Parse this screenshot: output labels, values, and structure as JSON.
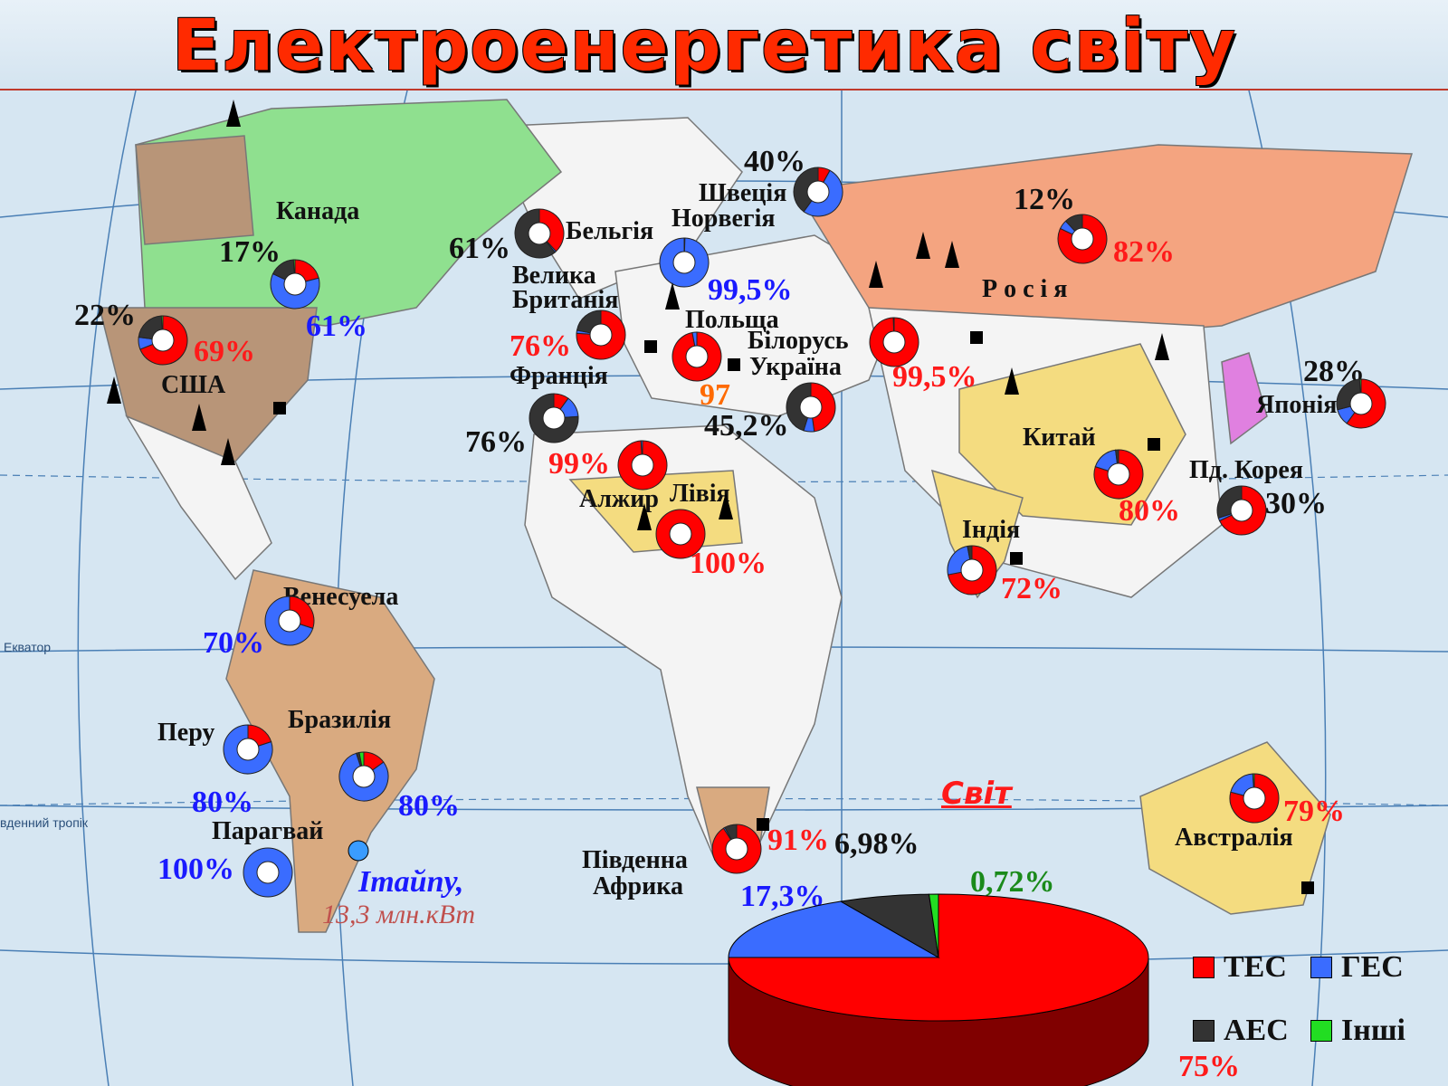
{
  "title": "Електроенергетика світу",
  "world_label": "Світ",
  "itaipu": {
    "name": "Ітайпу,",
    "capacity": "13,3 млн.кВт"
  },
  "colors": {
    "tes": "#ff0000",
    "ges": "#3a6cff",
    "aes": "#333333",
    "other": "#22dd22"
  },
  "legend": [
    {
      "label": "ТЕС",
      "color": "#ff0000"
    },
    {
      "label": "ГЕС",
      "color": "#3a6cff"
    },
    {
      "label": "АЕС",
      "color": "#333333"
    },
    {
      "label": "Інші",
      "color": "#22dd22"
    }
  ],
  "map_labels": {
    "equator": "Екватор",
    "tropic": "вденний тропік",
    "canada": "Канада",
    "usa": "США",
    "venezuela": "Венесуела",
    "peru": "Перу",
    "brazil": "Бразилія",
    "paraguay": "Парагвай",
    "belgium": "Бельгія",
    "norway": "Норвегія",
    "sweden": "Швеція",
    "uk1": "Велика",
    "uk2": "Британія",
    "poland": "Польща",
    "belarus": "Білорусь",
    "ukraine": "Україна",
    "france": "Франція",
    "algeria": "Алжир",
    "libya": "Лівія",
    "south_africa1": "Південна",
    "south_africa2": "Африка",
    "russia": "Р о с і я",
    "china": "Китай",
    "india": "Індія",
    "japan": "Японія",
    "korea": "Пд. Корея",
    "australia": "Австралія"
  },
  "percent_labels": {
    "canada_aes": "17%",
    "canada_ges": "61%",
    "usa_aes": "22%",
    "usa_tes": "69%",
    "venezuela_ges": "70%",
    "peru_ges": "80%",
    "brazil_ges": "80%",
    "paraguay_ges": "100%",
    "belgium_aes": "61%",
    "norway_ges": "99,5%",
    "sweden_aes": "40%",
    "uk_tes": "76%",
    "poland_tes": "97",
    "belarus_tes": "99,5%",
    "ukraine_aes": "45,2%",
    "france_aes": "76%",
    "algeria_tes": "99%",
    "libya_tes": "100%",
    "south_africa_tes": "91%",
    "russia_aes": "12%",
    "russia_tes": "82%",
    "china_tes": "80%",
    "india_tes": "72%",
    "japan_aes": "28%",
    "korea_aes": "30%",
    "australia_tes": "79%",
    "world_tes": "75%",
    "world_ges": "17,3%",
    "world_aes": "6,98%",
    "world_other": "0,72%"
  },
  "chart_data": {
    "type": "pie",
    "title": "Світ",
    "categories": [
      "ТЕС",
      "ГЕС",
      "АЕС",
      "Інші"
    ],
    "values": [
      75,
      17.3,
      6.98,
      0.72
    ]
  },
  "country_pies": [
    {
      "name": "Канада",
      "values": [
        21,
        61,
        17,
        1
      ]
    },
    {
      "name": "США",
      "values": [
        69,
        8,
        22,
        1
      ]
    },
    {
      "name": "Венесуела",
      "values": [
        30,
        70,
        0,
        0
      ]
    },
    {
      "name": "Перу",
      "values": [
        20,
        80,
        0,
        0
      ]
    },
    {
      "name": "Бразилія",
      "values": [
        15,
        80,
        2,
        3
      ]
    },
    {
      "name": "Парагвай",
      "values": [
        0,
        100,
        0,
        0
      ]
    },
    {
      "name": "Бельгія",
      "values": [
        38,
        1,
        61,
        0
      ]
    },
    {
      "name": "Норвегія",
      "values": [
        0.5,
        99.5,
        0,
        0
      ]
    },
    {
      "name": "Швеція",
      "values": [
        8,
        52,
        40,
        0
      ]
    },
    {
      "name": "Велика Британія",
      "values": [
        76,
        2,
        22,
        0
      ]
    },
    {
      "name": "Польща",
      "values": [
        97,
        3,
        0,
        0
      ]
    },
    {
      "name": "Білорусь",
      "values": [
        99.5,
        0.5,
        0,
        0
      ]
    },
    {
      "name": "Україна",
      "values": [
        47.8,
        7,
        45.2,
        0
      ]
    },
    {
      "name": "Франція",
      "values": [
        10,
        14,
        76,
        0
      ]
    },
    {
      "name": "Алжир",
      "values": [
        99,
        1,
        0,
        0
      ]
    },
    {
      "name": "Лівія",
      "values": [
        100,
        0,
        0,
        0
      ]
    },
    {
      "name": "Південна Африка",
      "values": [
        91,
        1,
        8,
        0
      ]
    },
    {
      "name": "Росія",
      "values": [
        82,
        6,
        12,
        0
      ]
    },
    {
      "name": "Китай",
      "values": [
        80,
        18,
        2,
        0
      ]
    },
    {
      "name": "Індія",
      "values": [
        72,
        25,
        3,
        0
      ]
    },
    {
      "name": "Японія",
      "values": [
        60,
        11,
        28,
        1
      ]
    },
    {
      "name": "Пд. Корея",
      "values": [
        68,
        2,
        30,
        0
      ]
    },
    {
      "name": "Австралія",
      "values": [
        79,
        20,
        0,
        1
      ]
    }
  ]
}
